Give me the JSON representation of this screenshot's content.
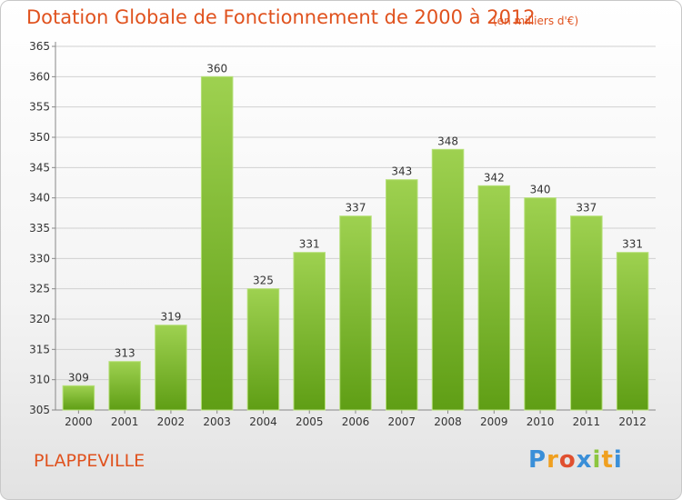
{
  "header": {
    "title": "Dotation Globale de Fonctionnement de 2000 à 2012",
    "unit": "(en milliers d'€)"
  },
  "footer": {
    "commune": "PLAPPEVILLE",
    "logo_text": "Proxiti"
  },
  "colors": {
    "title": "#e0521e",
    "bar_top": "#9ed150",
    "bar_bottom": "#5f9e15",
    "grid": "#d0d0d0"
  },
  "chart_data": {
    "type": "bar",
    "categories": [
      "2000",
      "2001",
      "2002",
      "2003",
      "2004",
      "2005",
      "2006",
      "2007",
      "2008",
      "2009",
      "2010",
      "2011",
      "2012"
    ],
    "values": [
      309,
      313,
      319,
      360,
      325,
      331,
      337,
      343,
      348,
      342,
      340,
      337,
      331
    ],
    "title": "Dotation Globale de Fonctionnement de 2000 à 2012",
    "ylim": [
      305,
      365
    ],
    "yticks": [
      305,
      310,
      315,
      320,
      325,
      330,
      335,
      340,
      345,
      350,
      355,
      360,
      365
    ],
    "grid": true,
    "legend": "none"
  }
}
